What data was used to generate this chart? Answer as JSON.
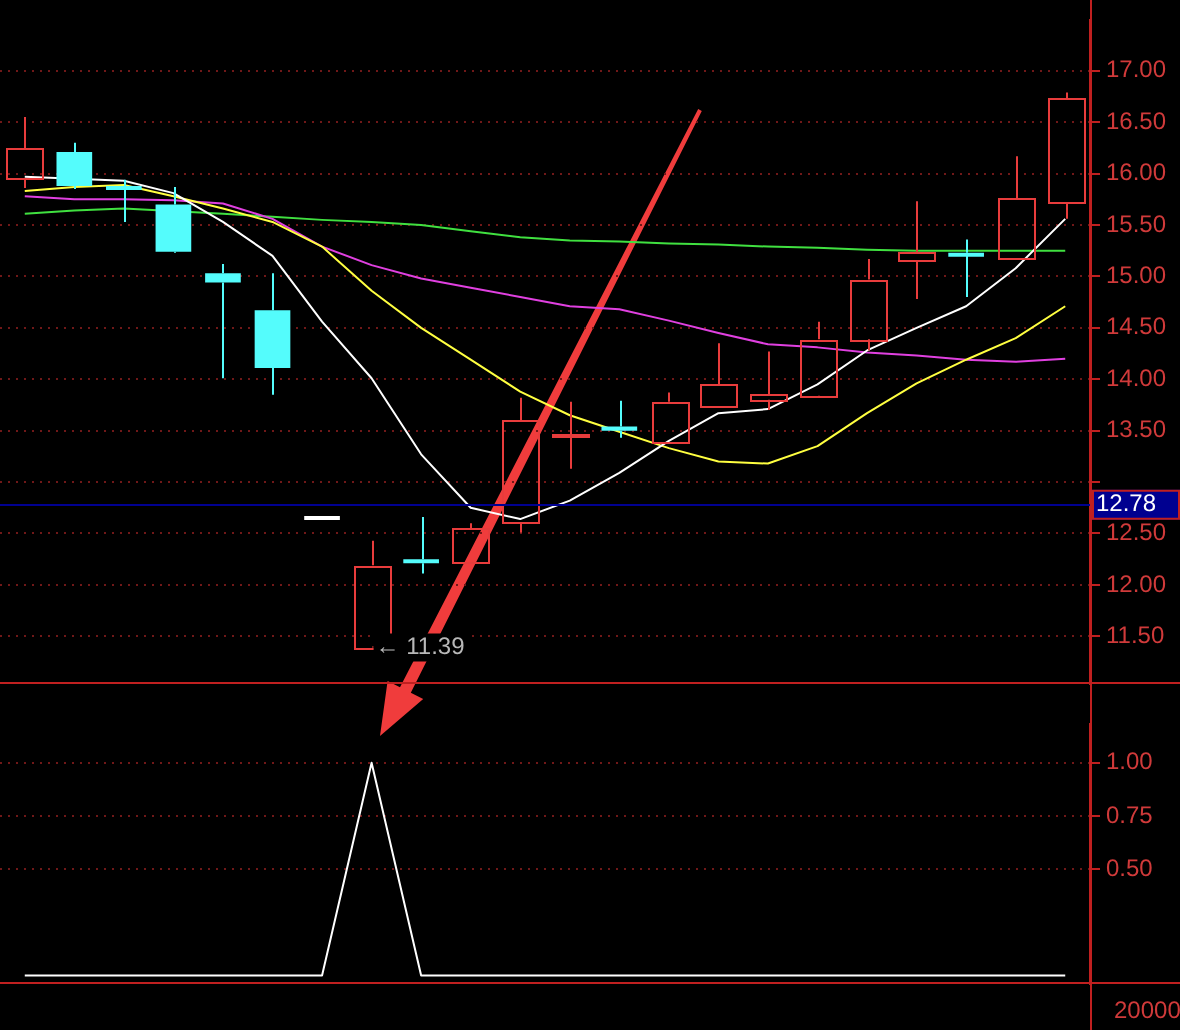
{
  "chart_data": [
    {
      "type": "candlestick",
      "categories": [
        null,
        null,
        null,
        null,
        null,
        null,
        null,
        null,
        null,
        null,
        null,
        null,
        null,
        null,
        null,
        null,
        null,
        null,
        null,
        null,
        null,
        null
      ],
      "ohlc": [
        [
          15.94,
          16.55,
          15.86,
          16.24
        ],
        [
          16.21,
          16.3,
          15.85,
          15.88
        ],
        [
          15.88,
          15.94,
          15.53,
          15.87
        ],
        [
          15.7,
          15.87,
          15.23,
          15.24
        ],
        [
          15.03,
          15.12,
          14.01,
          14.94
        ],
        [
          14.67,
          15.03,
          13.85,
          14.11
        ],
        [
          12.67,
          12.67,
          12.63,
          12.63
        ],
        [
          11.4,
          12.43,
          11.39,
          12.19
        ],
        [
          12.25,
          12.66,
          12.11,
          12.21
        ],
        [
          12.22,
          12.6,
          12.22,
          12.55
        ],
        [
          12.6,
          13.82,
          12.51,
          13.6
        ],
        [
          13.45,
          13.78,
          13.13,
          13.46
        ],
        [
          13.54,
          13.79,
          13.43,
          13.5
        ],
        [
          13.4,
          13.87,
          13.4,
          13.78
        ],
        [
          13.74,
          14.35,
          13.74,
          13.95
        ],
        [
          13.8,
          14.27,
          13.7,
          13.85
        ],
        [
          13.84,
          14.56,
          13.82,
          14.39
        ],
        [
          14.39,
          15.17,
          14.28,
          14.97
        ],
        [
          15.16,
          15.73,
          14.78,
          15.24
        ],
        [
          15.23,
          15.36,
          14.8,
          15.22
        ],
        [
          15.17,
          16.17,
          15.17,
          15.76
        ],
        [
          15.72,
          16.79,
          15.56,
          16.73
        ]
      ],
      "colors": [
        "#e83c3c",
        "#54fcfc",
        "#54fcfc",
        "#54fcfc",
        "#54fcfc",
        "#54fcfc",
        "#ffffff",
        "#e83c3c",
        "#54fcfc",
        "#e83c3c",
        "#e83c3c",
        "#e83c3c",
        "#54fcfc",
        "#e83c3c",
        "#e83c3c",
        "#e83c3c",
        "#e83c3c",
        "#e83c3c",
        "#e83c3c",
        "#54fcfc",
        "#e83c3c",
        "#e83c3c"
      ],
      "series": [
        {
          "type": "line",
          "color": "#ffffff",
          "values": [
            15.97,
            null,
            15.93,
            15.81,
            15.53,
            15.2,
            14.56,
            14.01,
            13.27,
            12.75,
            12.64,
            12.82,
            13.09,
            13.4,
            13.67,
            13.71,
            13.95,
            14.28,
            14.5,
            14.71,
            15.08,
            15.56
          ]
        },
        {
          "type": "line",
          "color": "#ffff40",
          "values": [
            15.83,
            15.87,
            15.89,
            15.78,
            15.66,
            15.53,
            15.29,
            14.86,
            14.5,
            14.19,
            13.88,
            13.65,
            13.49,
            13.33,
            13.2,
            13.18,
            13.35,
            13.67,
            13.96,
            14.19,
            14.4,
            14.71
          ]
        },
        {
          "type": "line",
          "color": "#e040e0",
          "values": [
            15.78,
            15.75,
            15.75,
            15.74,
            15.71,
            15.56,
            15.29,
            15.11,
            14.98,
            14.89,
            14.8,
            14.71,
            14.68,
            14.57,
            14.45,
            14.34,
            14.31,
            14.26,
            14.23,
            14.19,
            14.17,
            14.2
          ]
        },
        {
          "type": "line",
          "color": "#40e040",
          "values": [
            15.61,
            15.64,
            15.66,
            null,
            15.61,
            15.58,
            15.55,
            15.53,
            15.5,
            15.44,
            15.38,
            15.35,
            15.34,
            15.32,
            15.31,
            15.29,
            15.28,
            15.26,
            15.25,
            15.25,
            15.25,
            15.25
          ]
        }
      ],
      "ylim": [
        11.04,
        17.49
      ],
      "yticks": [
        {
          "value": 11.5,
          "label": "11.50"
        },
        {
          "value": 12,
          "label": "12.00"
        },
        {
          "value": 12.5,
          "label": "12.50"
        },
        {
          "value": 13,
          "label": null
        },
        {
          "value": 13.5,
          "label": "13.50"
        },
        {
          "value": 14,
          "label": "14.00"
        },
        {
          "value": 14.5,
          "label": "14.50"
        },
        {
          "value": 15,
          "label": "15.00"
        },
        {
          "value": 15.5,
          "label": "15.50"
        },
        {
          "value": 16,
          "label": "16.00"
        },
        {
          "value": 16.5,
          "label": "16.50"
        },
        {
          "value": 17,
          "label": "17.00"
        }
      ],
      "ref_lines": [
        {
          "axis": "y",
          "value": 12.78,
          "label": "12.78",
          "color": "#000090"
        }
      ],
      "annotations": [
        "← 11.39"
      ],
      "grid": "y",
      "tick_labels": "y",
      "legend": false
    },
    {
      "type": "line",
      "categories": [
        null,
        null,
        null,
        null,
        null,
        null,
        null,
        null,
        null,
        null,
        null,
        null,
        null,
        null,
        null,
        null,
        null,
        null,
        null,
        null,
        null,
        null
      ],
      "values": [
        0,
        0,
        0,
        0,
        0,
        0,
        0,
        1,
        0,
        0,
        0,
        0,
        0,
        0,
        0,
        0,
        0,
        0,
        0,
        0,
        0,
        0
      ],
      "color": "#ffffff",
      "ylim": [
        -0.04,
        1.18
      ],
      "yticks": [
        {
          "value": 0.5,
          "label": "0.50"
        },
        {
          "value": 0.75,
          "label": "0.75"
        },
        {
          "value": 1,
          "label": "1.00"
        }
      ],
      "annotations": [
        "20000"
      ],
      "grid": "y",
      "tick_labels": "y",
      "legend": false
    }
  ]
}
